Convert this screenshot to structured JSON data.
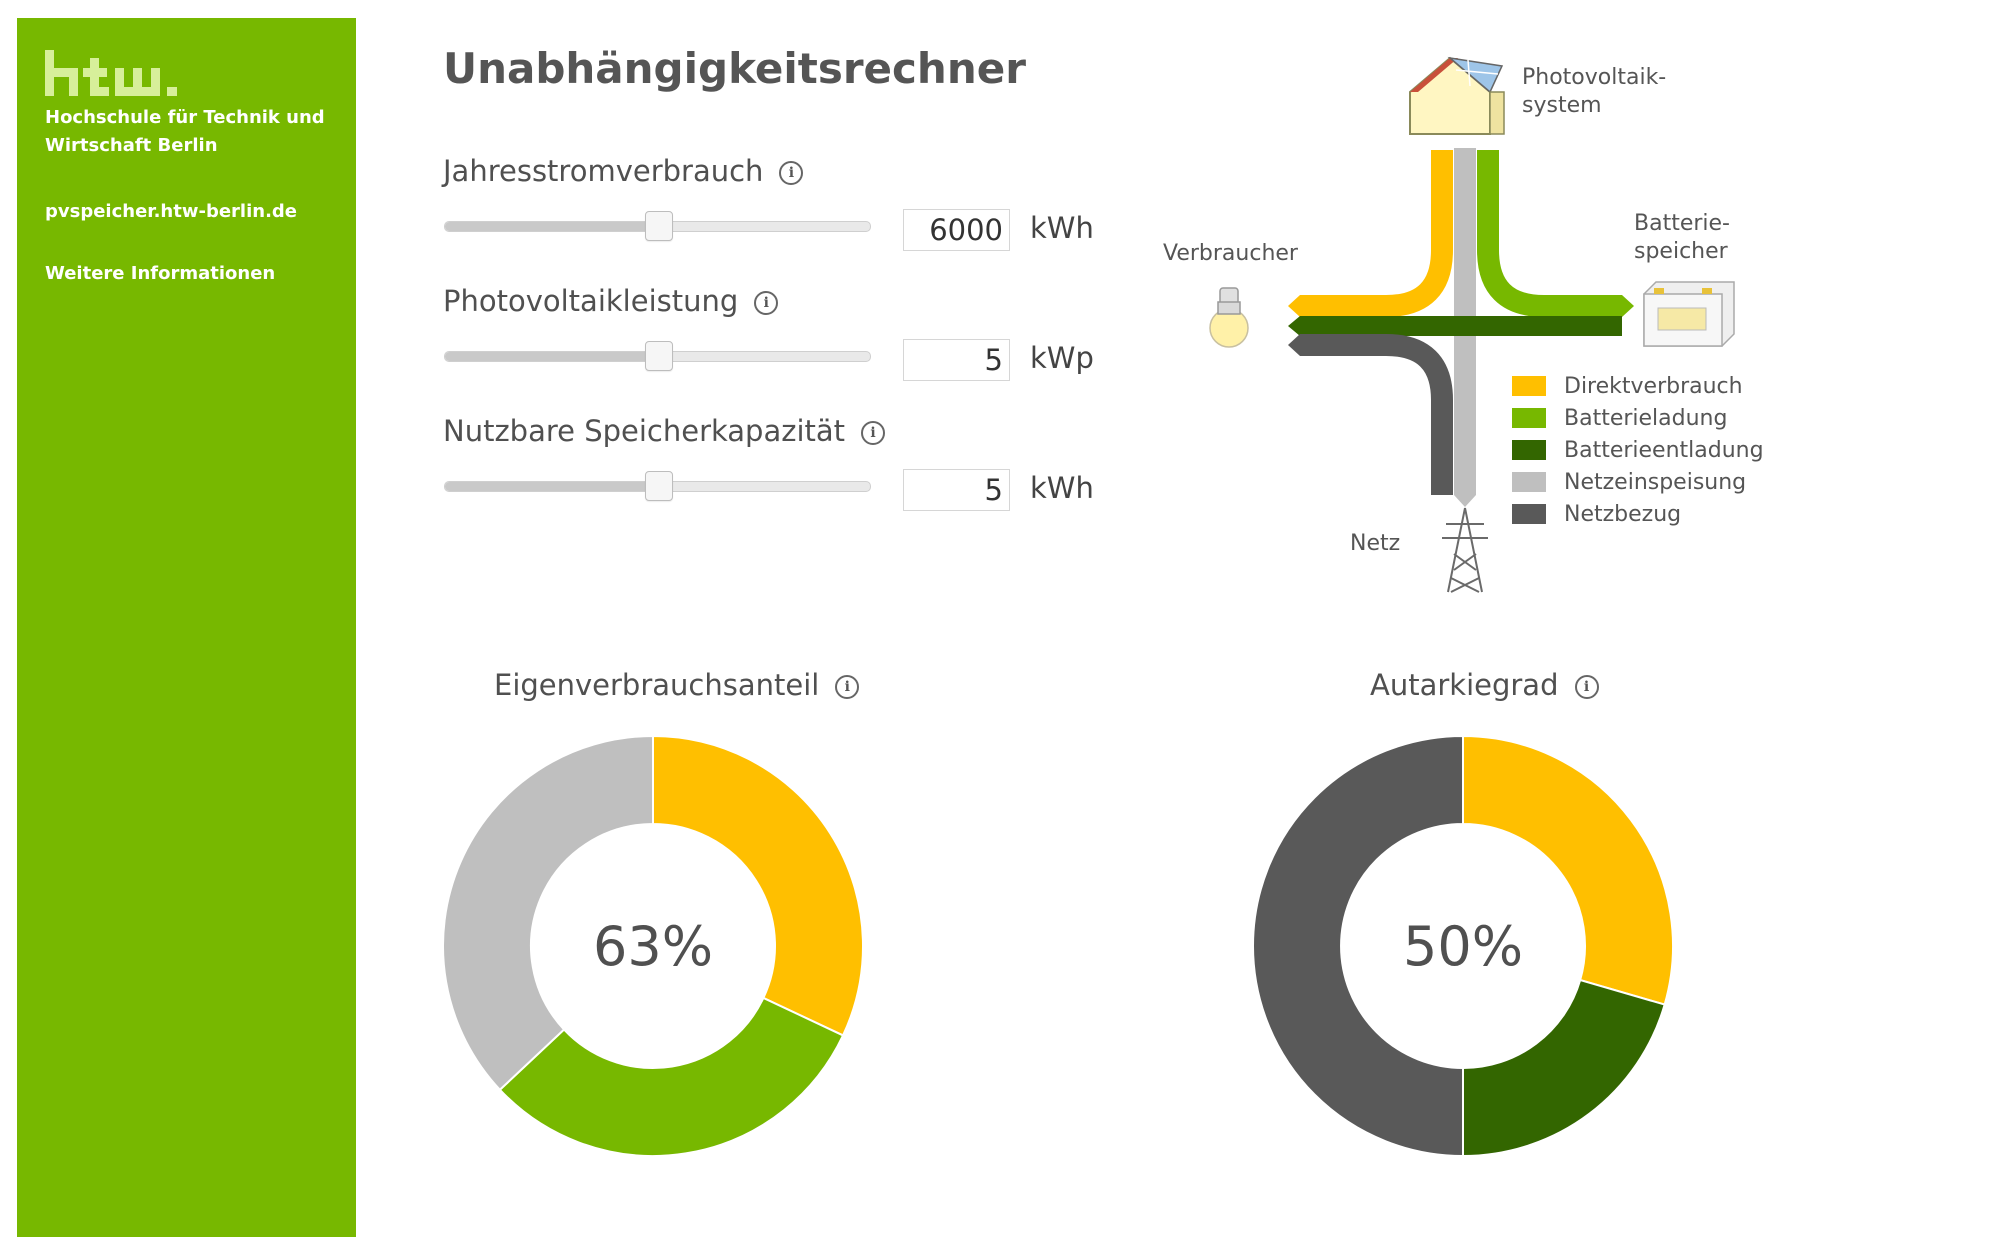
{
  "sidebar": {
    "logo_text": "htw.",
    "school_name": "Hochschule für Technik und Wirtschaft Berlin",
    "site_link": "pvspeicher.htw-berlin.de",
    "info_link": "Weitere Informationen",
    "color": "#77b800"
  },
  "title": "Unabhängigkeitsrechner",
  "inputs": [
    {
      "label": "Jahresstromverbrauch",
      "value": "6000",
      "unit": "kWh",
      "slider_fraction": 0.5,
      "icon": "info-icon"
    },
    {
      "label": "Photovoltaikleistung",
      "value": "5",
      "unit": "kWp",
      "slider_fraction": 0.5,
      "icon": "info-icon"
    },
    {
      "label": "Nutzbare Speicherkapazität",
      "value": "5",
      "unit": "kWh",
      "slider_fraction": 0.5,
      "icon": "info-icon"
    }
  ],
  "diagram": {
    "pv_label_1": "Photovoltaik-",
    "pv_label_2": "system",
    "battery_label_1": "Batterie-",
    "battery_label_2": "speicher",
    "consumer_label": "Verbraucher",
    "grid_label": "Netz",
    "icons": [
      "house-solar-icon",
      "battery-icon",
      "light-bulb-icon",
      "power-pylon-icon"
    ]
  },
  "legend": [
    {
      "label": "Direktverbrauch",
      "color": "#ffbf00"
    },
    {
      "label": "Batterieladung",
      "color": "#77b800"
    },
    {
      "label": "Batterieentladung",
      "color": "#336600"
    },
    {
      "label": "Netzeinspeisung",
      "color": "#bfbfbf"
    },
    {
      "label": "Netzbezug",
      "color": "#595959"
    }
  ],
  "chart_data": [
    {
      "type": "pie",
      "title": "Eigenverbrauchsanteil",
      "center_label": "63%",
      "slices": [
        {
          "label": "Direktverbrauch",
          "value": 32,
          "color": "#ffbf00"
        },
        {
          "label": "Batterieladung",
          "value": 31,
          "color": "#77b800"
        },
        {
          "label": "Netzeinspeisung",
          "value": 37,
          "color": "#bfbfbf"
        }
      ]
    },
    {
      "type": "pie",
      "title": "Autarkiegrad",
      "center_label": "50%",
      "slices": [
        {
          "label": "Direktverbrauch",
          "value": 29.5,
          "color": "#ffbf00"
        },
        {
          "label": "Batterieentladung",
          "value": 20.5,
          "color": "#336600"
        },
        {
          "label": "Netzbezug",
          "value": 50,
          "color": "#595959"
        }
      ]
    }
  ]
}
